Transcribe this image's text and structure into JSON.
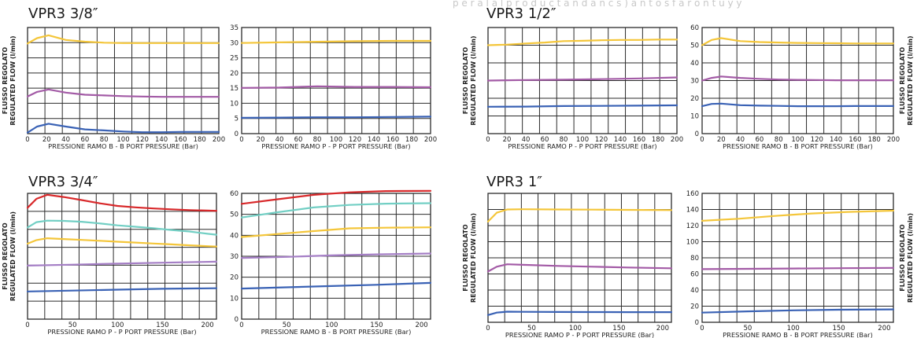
{
  "header": {
    "faint_text": "p e r  a l  a  l p r o d u c t  a n d  a n  c  s  ) a n t o  s  f a r o n t  u  y  y"
  },
  "colors": {
    "yellow": "#f4c63a",
    "magenta": "#a35ba6",
    "blue": "#3a62b5",
    "red": "#d8282a",
    "teal": "#72cfc4",
    "violet": "#a57fc6",
    "grid": "#2b2b2b"
  },
  "sections": [
    {
      "id": "s38",
      "title": "VPR3 3/8″"
    },
    {
      "id": "s12",
      "title": "VPR3 1/2″"
    },
    {
      "id": "s34",
      "title": "VPR3 3/4″"
    },
    {
      "id": "s1",
      "title": "VPR3 1″"
    }
  ],
  "chart_data": [
    {
      "type": "line",
      "section": "VPR3 3/8″",
      "xlabel": "PRESSIONE RAMO B - B PORT PRESSURE (Bar)",
      "ylabel": [
        "FLUSSO REGOLATO",
        "REGULATED FLOW (l/min)"
      ],
      "x_ticks": [
        "0",
        "20",
        "40",
        "60",
        "80",
        "100",
        "120",
        "140",
        "160",
        "180",
        "200"
      ],
      "xlim": [
        0,
        200
      ],
      "ylim": [
        5,
        35
      ],
      "y_ticks": [],
      "series": [
        {
          "color": "yellow",
          "x": [
            0,
            10,
            22,
            40,
            60,
            80,
            100,
            120,
            140,
            160,
            180,
            200
          ],
          "y": [
            30.5,
            32,
            32.8,
            31.5,
            31,
            30.7,
            30.6,
            30.6,
            30.6,
            30.6,
            30.6,
            30.6
          ]
        },
        {
          "color": "magenta",
          "x": [
            0,
            10,
            22,
            40,
            60,
            80,
            100,
            120,
            140,
            160,
            180,
            200
          ],
          "y": [
            15.5,
            16.8,
            17.5,
            16.6,
            16,
            15.8,
            15.6,
            15.5,
            15.4,
            15.4,
            15.4,
            15.4
          ]
        },
        {
          "color": "blue",
          "x": [
            0,
            10,
            22,
            40,
            60,
            80,
            100,
            120,
            140,
            160,
            180,
            200
          ],
          "y": [
            5.3,
            7,
            7.8,
            7,
            6.2,
            5.9,
            5.6,
            5.4,
            5.4,
            5.5,
            5.5,
            5.5
          ]
        }
      ]
    },
    {
      "type": "line",
      "section": "VPR3 3/8″",
      "xlabel": "PRESSIONE RAMO P - P PORT PRESSURE (Bar)",
      "ylabel": [],
      "x_ticks": [
        "0",
        "20",
        "40",
        "60",
        "80",
        "100",
        "120",
        "140",
        "160",
        "180",
        "200"
      ],
      "xlim": [
        0,
        200
      ],
      "ylim": [
        0,
        35
      ],
      "y_ticks": [
        "0",
        "5",
        "10",
        "15",
        "20",
        "25",
        "30",
        "35"
      ],
      "series": [
        {
          "color": "yellow",
          "x": [
            0,
            40,
            80,
            120,
            160,
            200
          ],
          "y": [
            29.9,
            30.1,
            30.3,
            30.5,
            30.6,
            30.6
          ]
        },
        {
          "color": "magenta",
          "x": [
            0,
            40,
            80,
            120,
            160,
            200
          ],
          "y": [
            15.1,
            15.2,
            15.6,
            15.4,
            15.4,
            15.3
          ]
        },
        {
          "color": "blue",
          "x": [
            0,
            40,
            80,
            120,
            160,
            200
          ],
          "y": [
            5.2,
            5.3,
            5.4,
            5.4,
            5.5,
            5.6
          ]
        }
      ]
    },
    {
      "type": "line",
      "section": "VPR3 1/2″",
      "xlabel": "PRESSIONE RAMO P - P PORT PRESSURE (Bar)",
      "ylabel": [
        "FLUSSO REGOLATO",
        "REGULATED FLOW (l/min)"
      ],
      "x_ticks": [
        "0",
        "20",
        "40",
        "60",
        "80",
        "100",
        "120",
        "140",
        "160",
        "180",
        "200"
      ],
      "xlim": [
        0,
        200
      ],
      "ylim": [
        0,
        60
      ],
      "y_ticks": [],
      "series": [
        {
          "color": "yellow",
          "x": [
            0,
            20,
            40,
            60,
            80,
            100,
            120,
            140,
            160,
            180,
            200
          ],
          "y": [
            50,
            50.3,
            51,
            51.5,
            52.3,
            52.5,
            52.8,
            53,
            53,
            53.2,
            53.2
          ]
        },
        {
          "color": "magenta",
          "x": [
            0,
            40,
            80,
            120,
            160,
            200
          ],
          "y": [
            30,
            30.3,
            30.5,
            30.8,
            31.2,
            31.8
          ]
        },
        {
          "color": "blue",
          "x": [
            0,
            40,
            80,
            120,
            160,
            200
          ],
          "y": [
            15.2,
            15.3,
            15.6,
            15.7,
            15.8,
            16
          ]
        }
      ]
    },
    {
      "type": "line",
      "section": "VPR3 1/2″",
      "xlabel": "PRESSIONE RAMO B - B PORT PRESSURE (Bar)",
      "ylabel": [
        "FLUSSO REGOLATO",
        "REGULATED FLOW (l/min)"
      ],
      "x_ticks": [
        "0",
        "20",
        "40",
        "60",
        "80",
        "100",
        "120",
        "140",
        "160",
        "180",
        "200"
      ],
      "xlim": [
        0,
        200
      ],
      "ylim": [
        0,
        60
      ],
      "y_ticks": [
        "0",
        "10",
        "20",
        "30",
        "40",
        "50",
        "60"
      ],
      "series": [
        {
          "color": "yellow",
          "x": [
            0,
            10,
            20,
            40,
            60,
            80,
            100,
            120,
            140,
            160,
            180,
            200
          ],
          "y": [
            50,
            53,
            54,
            52.3,
            51.8,
            51.5,
            51.3,
            51.2,
            51.1,
            51,
            51,
            51
          ]
        },
        {
          "color": "magenta",
          "x": [
            0,
            10,
            20,
            40,
            60,
            80,
            100,
            120,
            140,
            160,
            180,
            200
          ],
          "y": [
            30,
            31.5,
            32.3,
            31.5,
            31,
            30.6,
            30.4,
            30.3,
            30.2,
            30.2,
            30.2,
            30.2
          ]
        },
        {
          "color": "blue",
          "x": [
            0,
            10,
            20,
            40,
            60,
            80,
            100,
            120,
            140,
            160,
            180,
            200
          ],
          "y": [
            15.5,
            16.8,
            17,
            16.1,
            15.8,
            15.7,
            15.5,
            15.5,
            15.5,
            15.6,
            15.6,
            15.6
          ]
        }
      ]
    },
    {
      "type": "line",
      "section": "VPR3 3/4″",
      "xlabel": "PRESSIONE RAMO P - P PORT PRESSURE (Bar)",
      "ylabel": [
        "FLUSSO REGOLATO",
        "REGULATED FLOW (l/min)"
      ],
      "x_ticks": [
        "0",
        "50",
        "100",
        "150",
        "200"
      ],
      "xlim": [
        0,
        210
      ],
      "ylim": [
        0,
        70
      ],
      "y_ticks": [],
      "series": [
        {
          "color": "red",
          "x": [
            0,
            10,
            22,
            40,
            60,
            80,
            100,
            120,
            140,
            160,
            180,
            200,
            210
          ],
          "y": [
            62,
            67,
            69.2,
            68,
            66.3,
            64.5,
            63,
            62.2,
            61.6,
            61.1,
            60.7,
            60.4,
            60.3
          ]
        },
        {
          "color": "teal",
          "x": [
            0,
            10,
            22,
            40,
            60,
            80,
            100,
            120,
            140,
            160,
            180,
            200,
            210
          ],
          "y": [
            51,
            54,
            54.8,
            54.7,
            54.2,
            53.3,
            52.2,
            51.4,
            50.6,
            49.6,
            48.8,
            47.5,
            47
          ]
        },
        {
          "color": "yellow",
          "x": [
            0,
            10,
            22,
            40,
            60,
            80,
            100,
            120,
            140,
            160,
            180,
            200,
            210
          ],
          "y": [
            42,
            44,
            45,
            44.6,
            44.1,
            43.6,
            43.1,
            42.6,
            42.1,
            41.6,
            41.1,
            40.6,
            40.4
          ]
        },
        {
          "color": "violet",
          "x": [
            0,
            50,
            100,
            150,
            210
          ],
          "y": [
            29.8,
            30.3,
            30.9,
            31.4,
            32
          ]
        },
        {
          "color": "blue",
          "x": [
            0,
            50,
            100,
            150,
            210
          ],
          "y": [
            15.4,
            15.9,
            16.4,
            16.9,
            17.2
          ]
        }
      ]
    },
    {
      "type": "line",
      "section": "VPR3 3/4″",
      "xlabel": "PRESSIONE RAMO B - B PORT PRESSURE (Bar)",
      "ylabel": [],
      "x_ticks": [
        "0",
        "50",
        "100",
        "150",
        "200"
      ],
      "xlim": [
        0,
        210
      ],
      "ylim": [
        0,
        60
      ],
      "y_ticks": [
        "0",
        "10",
        "20",
        "30",
        "40",
        "50",
        "60"
      ],
      "series": [
        {
          "color": "red",
          "x": [
            0,
            40,
            80,
            120,
            160,
            210
          ],
          "y": [
            55,
            57.2,
            59.3,
            60.5,
            61.1,
            61.2
          ]
        },
        {
          "color": "teal",
          "x": [
            0,
            40,
            80,
            120,
            160,
            210
          ],
          "y": [
            48.5,
            51,
            53.3,
            54.5,
            55.1,
            55.3
          ]
        },
        {
          "color": "yellow",
          "x": [
            0,
            40,
            80,
            120,
            160,
            210
          ],
          "y": [
            39.2,
            40.6,
            42,
            43.3,
            43.6,
            43.8
          ]
        },
        {
          "color": "violet",
          "x": [
            0,
            50,
            100,
            150,
            210
          ],
          "y": [
            29.2,
            29.7,
            30.4,
            30.9,
            31.3
          ]
        },
        {
          "color": "blue",
          "x": [
            0,
            50,
            100,
            150,
            210
          ],
          "y": [
            14.6,
            15.2,
            15.8,
            16.4,
            17.3
          ]
        }
      ]
    },
    {
      "type": "line",
      "section": "VPR3 1″",
      "xlabel": "PRESSIONE RAMO P - P PORT PRESSURE (Bar)",
      "ylabel": [
        "FLUSSO REGOLATO",
        "REGULATED FLOW (l/min)"
      ],
      "x_ticks": [
        "0",
        "50",
        "100",
        "150",
        "200"
      ],
      "xlim": [
        0,
        210
      ],
      "ylim": [
        0,
        160
      ],
      "y_ticks": [],
      "series": [
        {
          "color": "yellow",
          "x": [
            0,
            10,
            22,
            40,
            80,
            120,
            160,
            210
          ],
          "y": [
            125,
            136,
            140,
            140.3,
            140,
            139.8,
            139.5,
            139.2
          ]
        },
        {
          "color": "magenta",
          "x": [
            0,
            10,
            22,
            40,
            80,
            120,
            160,
            210
          ],
          "y": [
            63,
            69,
            72,
            71.3,
            70,
            69,
            68,
            67
          ]
        },
        {
          "color": "blue",
          "x": [
            0,
            10,
            22,
            40,
            80,
            120,
            160,
            210
          ],
          "y": [
            9,
            12,
            13.2,
            13,
            12.8,
            12.7,
            12.6,
            12.6
          ]
        }
      ]
    },
    {
      "type": "line",
      "section": "VPR3 1″",
      "xlabel": "PRESSIONE RAMO B - B PORT PRESSURE (Bar)",
      "ylabel": [
        "FLUSSO REGOLATO",
        "REGULATED FLOW (l/min)"
      ],
      "x_ticks": [
        "0",
        "50",
        "100",
        "150",
        "200"
      ],
      "xlim": [
        0,
        210
      ],
      "ylim": [
        0,
        160
      ],
      "y_ticks": [
        "0",
        "20",
        "40",
        "60",
        "80",
        "100",
        "120",
        "140",
        "160"
      ],
      "series": [
        {
          "color": "yellow",
          "x": [
            0,
            40,
            80,
            120,
            160,
            210
          ],
          "y": [
            126,
            128.5,
            132,
            135,
            137,
            138.5
          ]
        },
        {
          "color": "magenta",
          "x": [
            0,
            50,
            100,
            150,
            210
          ],
          "y": [
            66,
            66.3,
            66.7,
            67.1,
            67.5
          ]
        },
        {
          "color": "blue",
          "x": [
            0,
            50,
            100,
            150,
            210
          ],
          "y": [
            12,
            13.6,
            14.8,
            15.6,
            16
          ]
        }
      ]
    }
  ]
}
